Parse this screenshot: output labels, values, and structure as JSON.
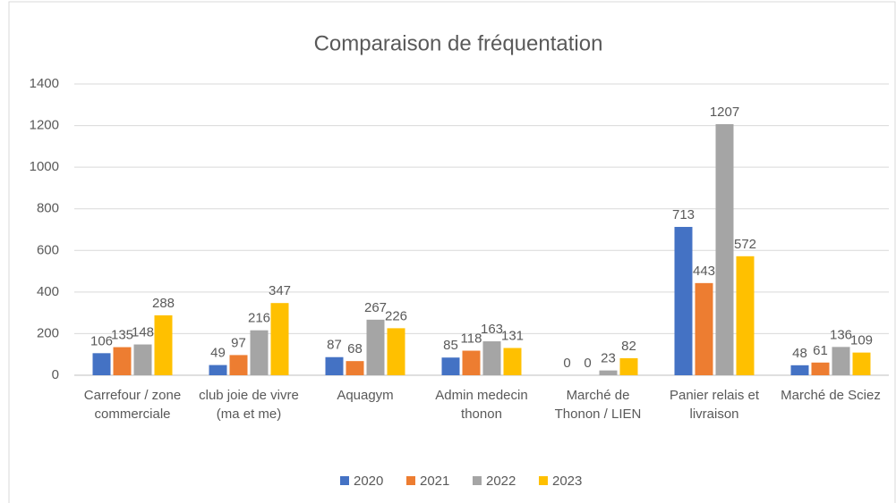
{
  "chart_data": {
    "type": "bar",
    "title": "Comparaison de fréquentation",
    "categories": [
      "Carrefour / zone commerciale",
      "club joie de vivre (ma et me)",
      "Aquagym",
      "Admin medecin thonon",
      "Marché de Thonon / LIEN",
      "Panier relais et livraison",
      "Marché de Sciez"
    ],
    "series": [
      {
        "name": "2020",
        "color": "#4472c4",
        "values": [
          106,
          49,
          87,
          85,
          0,
          713,
          48
        ]
      },
      {
        "name": "2021",
        "color": "#ed7d31",
        "values": [
          135,
          97,
          68,
          118,
          0,
          443,
          61
        ]
      },
      {
        "name": "2022",
        "color": "#a5a5a5",
        "values": [
          148,
          216,
          267,
          163,
          23,
          1207,
          136
        ]
      },
      {
        "name": "2023",
        "color": "#ffc000",
        "values": [
          288,
          347,
          226,
          131,
          82,
          572,
          109
        ]
      }
    ],
    "ylim": [
      0,
      1400
    ],
    "yticks": [
      0,
      200,
      400,
      600,
      800,
      1000,
      1200,
      1400
    ],
    "grid": true,
    "legend": "bottom"
  }
}
